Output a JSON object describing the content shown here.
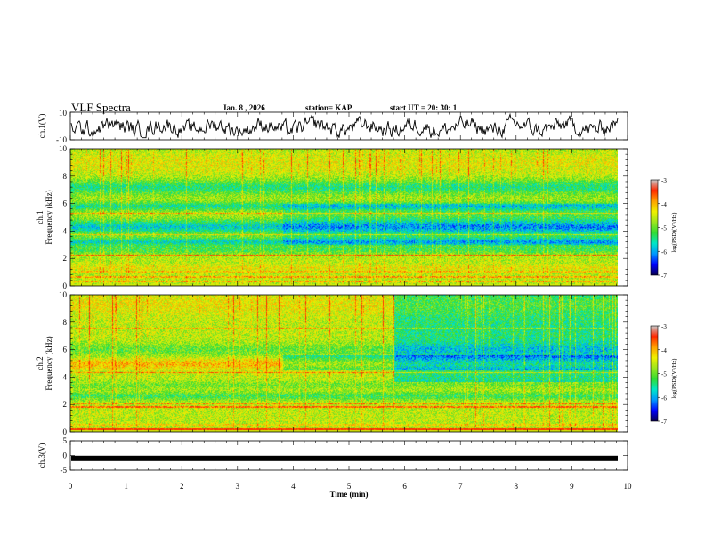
{
  "header": {
    "title": "VLF Spectra",
    "date": "Jan. 8 , 2026",
    "station": "station= KAP",
    "start_ut": "start UT =   20: 30: 1"
  },
  "colors": {
    "waveform": "#000000",
    "ch3_bar": "#000000",
    "axis": "#000000",
    "colormap": [
      "#08004a",
      "#0000ff",
      "#0096ff",
      "#00e6c8",
      "#32dc32",
      "#9be61e",
      "#f0f000",
      "#ffa000",
      "#ff2800",
      "#c8c8c8"
    ]
  },
  "chart_data": [
    {
      "type": "line",
      "name": "ch1-waveform",
      "ylabel": "ch.1(V)",
      "ylim": [
        -10,
        10
      ],
      "yticks": [
        10,
        -10
      ],
      "xlim": [
        0,
        10
      ],
      "series": [
        {
          "name": "ch.1",
          "trend": "noisy oscillation around -1 V, roughly between -8 and 8 V"
        }
      ]
    },
    {
      "type": "heatmap",
      "name": "ch1-spectrogram",
      "ylabel": "ch.1\nFrequency (kHz)",
      "ylabel_line1": "ch.1",
      "ylabel_line2": "Frequency (kHz)",
      "ylim": [
        0,
        10
      ],
      "yticks": [
        "0",
        "2",
        "4",
        "6",
        "8",
        "10"
      ],
      "xlim": [
        0,
        9.8
      ],
      "colorbar": {
        "label": "log(PSD)(V²/Hz)",
        "range": [
          -7,
          -3
        ],
        "ticks": [
          "-3",
          "-4",
          "-5",
          "-6",
          "-7"
        ]
      },
      "base_level_low_kHz": -4.3,
      "base_level_high_kHz": -4.5,
      "bands": [
        {
          "f": 0.3,
          "w": 0.15,
          "d": 0.6,
          "sharp": true
        },
        {
          "f": 0.6,
          "w": 0.12,
          "d": 0.7,
          "sharp": true
        },
        {
          "f": 1.0,
          "w": 0.15,
          "d": 0.5,
          "sharp": true
        },
        {
          "f": 1.3,
          "w": 0.2,
          "d": 0.3
        },
        {
          "f": 2.2,
          "w": 0.08,
          "d": 1.2,
          "sharp": true
        },
        {
          "f": 2.6,
          "w": 0.3,
          "d": -0.6
        },
        {
          "f": 3.2,
          "w": 0.3,
          "d": -1.1
        },
        {
          "f": 3.7,
          "w": 0.06,
          "d": 0.8,
          "sharp": true
        },
        {
          "f": 4.3,
          "w": 0.5,
          "d": -1.2
        },
        {
          "f": 5.3,
          "w": 0.08,
          "d": 0.9,
          "sharp": true
        },
        {
          "f": 5.8,
          "w": 0.3,
          "d": -0.9
        },
        {
          "f": 6.5,
          "w": 0.05,
          "d": 0.7,
          "sharp": true
        },
        {
          "f": 7.2,
          "w": 0.5,
          "d": -0.8
        },
        {
          "f": 9.0,
          "w": 1.0,
          "d": 0.4
        }
      ],
      "time_change": {
        "t": 3.8,
        "delta": -0.4,
        "fmin": 3.0,
        "fmax": 6.0
      },
      "sferic_strength": 0.7
    },
    {
      "type": "heatmap",
      "name": "ch2-spectrogram",
      "ylabel": "ch.2\nFrequency (kHz)",
      "ylabel_line1": "ch.2",
      "ylabel_line2": "Frequency (kHz)",
      "ylim": [
        0,
        10
      ],
      "yticks": [
        "0",
        "2",
        "4",
        "6",
        "8",
        "10"
      ],
      "xlim": [
        0,
        9.8
      ],
      "colorbar": {
        "label": "log(PSD)(V²/Hz)",
        "range": [
          -7,
          -3
        ],
        "ticks": [
          "-3",
          "-4",
          "-5",
          "-6",
          "-7"
        ]
      },
      "base_level_low_kHz": -4.3,
      "base_level_high_kHz": -4.3,
      "bands": [
        {
          "f": 0.15,
          "w": 0.1,
          "d": 1.5,
          "sharp": true
        },
        {
          "f": 0.5,
          "w": 0.15,
          "d": 0.4,
          "sharp": true
        },
        {
          "f": 1.8,
          "w": 0.08,
          "d": 1.0,
          "sharp": true
        },
        {
          "f": 2.0,
          "w": 0.06,
          "d": 0.8,
          "sharp": true
        },
        {
          "f": 2.6,
          "w": 0.3,
          "d": -0.7
        },
        {
          "f": 3.4,
          "w": 0.3,
          "d": -0.4
        },
        {
          "f": 4.3,
          "w": 0.06,
          "d": 0.9,
          "sharp": true
        },
        {
          "f": 4.95,
          "w": 0.4,
          "d": 0.6
        },
        {
          "f": 6.0,
          "w": 0.5,
          "d": -0.5
        },
        {
          "f": 7.6,
          "w": 0.05,
          "d": 0.6,
          "sharp": true
        },
        {
          "f": 9.3,
          "w": 0.8,
          "d": 0.3
        }
      ],
      "time_change": {
        "t": 3.8,
        "delta": -0.8,
        "fmin": 4.5,
        "fmax": 5.6
      },
      "time_change_2": {
        "t": 5.8,
        "delta": -0.9,
        "fmin": 3.6,
        "fmax": 10.0
      },
      "sferic_strength": 0.9
    },
    {
      "type": "line",
      "name": "ch3-waveform",
      "ylabel": "ch.3(V)",
      "ylim": [
        -5,
        5
      ],
      "yticks": [
        "5",
        "0",
        "-5"
      ],
      "xlim": [
        0,
        10
      ],
      "series": [
        {
          "name": "ch.3",
          "value": -1,
          "note": "constant thick bar near -1 V"
        }
      ]
    }
  ],
  "xaxis": {
    "label": "Time (min)",
    "ticks": [
      "0",
      "1",
      "2",
      "3",
      "4",
      "5",
      "6",
      "7",
      "8",
      "9",
      "10"
    ],
    "range": [
      0,
      10
    ]
  }
}
